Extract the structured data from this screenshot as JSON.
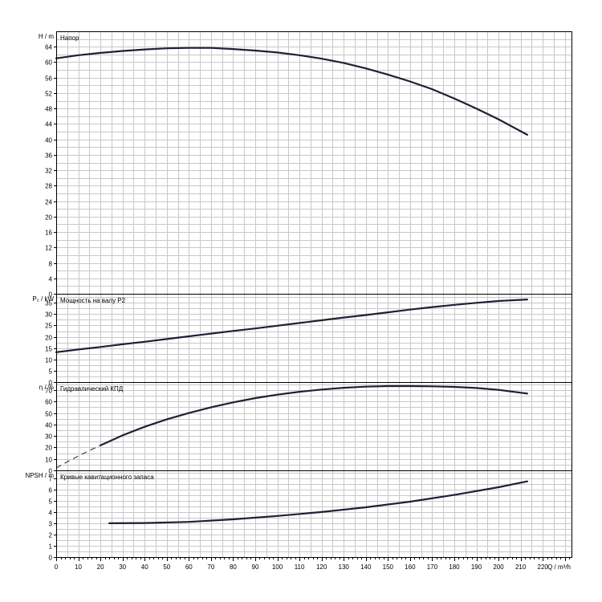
{
  "chart_data": [
    {
      "type": "line",
      "title": "Напор",
      "ylabel": "H / m",
      "ylim": [
        0,
        68
      ],
      "yticks": [
        0,
        4,
        8,
        12,
        16,
        20,
        24,
        28,
        32,
        36,
        40,
        44,
        48,
        52,
        56,
        60,
        64
      ],
      "series": [
        {
          "x": [
            0,
            10,
            20,
            30,
            40,
            50,
            60,
            70,
            80,
            90,
            100,
            110,
            120,
            130,
            140,
            150,
            160,
            170,
            180,
            190,
            200,
            213
          ],
          "y": [
            61.0,
            61.8,
            62.4,
            62.9,
            63.3,
            63.6,
            63.7,
            63.7,
            63.4,
            63.0,
            62.5,
            61.8,
            60.9,
            59.8,
            58.4,
            56.8,
            55.0,
            53.0,
            50.6,
            48.0,
            45.2,
            41.2
          ]
        }
      ]
    },
    {
      "type": "line",
      "title": "Мощность на валу P2",
      "ylabel": "P₂ / kW",
      "ylim": [
        0,
        39
      ],
      "yticks": [
        0,
        5,
        10,
        15,
        20,
        25,
        30,
        35
      ],
      "series": [
        {
          "x": [
            0,
            10,
            20,
            30,
            40,
            50,
            60,
            70,
            80,
            90,
            100,
            110,
            120,
            130,
            140,
            150,
            160,
            170,
            180,
            190,
            200,
            213
          ],
          "y": [
            13.2,
            14.4,
            15.5,
            16.7,
            17.8,
            19.0,
            20.2,
            21.4,
            22.6,
            23.7,
            24.9,
            26.1,
            27.3,
            28.5,
            29.6,
            30.8,
            32.0,
            33.1,
            34.1,
            35.0,
            35.8,
            36.5
          ]
        }
      ]
    },
    {
      "type": "line",
      "title": "Гидравлический КПД",
      "ylabel": "η / %",
      "ylim": [
        0,
        77
      ],
      "yticks": [
        0,
        10,
        20,
        30,
        40,
        50,
        60,
        70
      ],
      "series": [
        {
          "x": [
            0,
            5,
            10,
            15,
            20
          ],
          "y": [
            2.0,
            7.5,
            12.5,
            17.3,
            21.8
          ],
          "style": "dashed"
        },
        {
          "x": [
            20,
            30,
            40,
            50,
            60,
            70,
            80,
            90,
            100,
            110,
            120,
            130,
            140,
            150,
            160,
            170,
            180,
            190,
            200,
            213
          ],
          "y": [
            21.8,
            30.5,
            38.0,
            44.5,
            50.0,
            55.0,
            59.3,
            63.0,
            66.0,
            68.5,
            70.5,
            72.0,
            73.0,
            73.5,
            73.5,
            73.3,
            72.8,
            71.8,
            70.2,
            67.0
          ]
        }
      ]
    },
    {
      "type": "line",
      "title": "Кривые кавитационного запаса",
      "ylabel": "NPSH / m",
      "ylim": [
        0,
        7.7
      ],
      "yticks": [
        0,
        1,
        2,
        3,
        4,
        5,
        6,
        7
      ],
      "series": [
        {
          "x": [
            24,
            40,
            60,
            80,
            100,
            120,
            140,
            160,
            180,
            200,
            213
          ],
          "y": [
            3.0,
            3.02,
            3.12,
            3.35,
            3.65,
            4.0,
            4.42,
            4.92,
            5.52,
            6.2,
            6.72
          ]
        }
      ]
    }
  ],
  "xaxis": {
    "xlabel": "Q / m³/h",
    "xlim": [
      0,
      233
    ],
    "xticks": [
      0,
      10,
      20,
      30,
      40,
      50,
      60,
      70,
      80,
      90,
      100,
      110,
      120,
      130,
      140,
      150,
      160,
      170,
      180,
      190,
      200,
      210,
      220
    ]
  }
}
